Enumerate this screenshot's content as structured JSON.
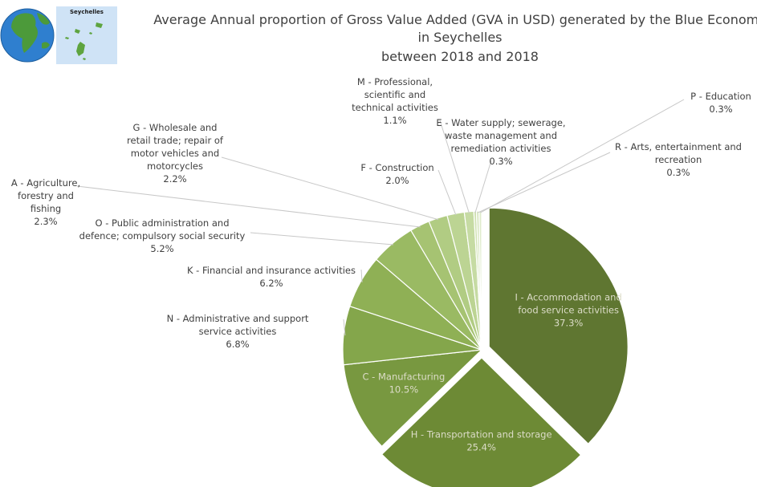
{
  "chart_data": {
    "type": "pie",
    "title": "Average Annual proportion of Gross Value Added (GVA in USD) generated by the Blue Economy in Seychelles between 2018 and 2018",
    "title_lines": [
      "Average Annual proportion of Gross Value Added (GVA in USD) generated by the Blue Economy",
      "in Seychelles",
      "between 2018 and 2018"
    ],
    "slices": [
      {
        "name": "I - Accommodation and food service activities",
        "label_lines": [
          "I - Accommodation and",
          "food service activities"
        ],
        "value": 37.3,
        "value_label": "37.3%",
        "color": "#5f7631",
        "exploded": true,
        "label_inside": true
      },
      {
        "name": "H - Transportation and storage",
        "label_lines": [
          "H - Transportation and storage"
        ],
        "value": 25.4,
        "value_label": "25.4%",
        "color": "#6d8a35",
        "exploded": true,
        "label_inside": true
      },
      {
        "name": "C - Manufacturing",
        "label_lines": [
          "C - Manufacturing"
        ],
        "value": 10.5,
        "value_label": "10.5%",
        "color": "#789840",
        "exploded": false,
        "label_inside": true
      },
      {
        "name": "N - Administrative and support service activities",
        "label_lines": [
          "N - Administrative and support",
          "service activities"
        ],
        "value": 6.8,
        "value_label": "6.8%",
        "color": "#84a64b",
        "exploded": false,
        "label_inside": false
      },
      {
        "name": "K - Financial and insurance activities",
        "label_lines": [
          "K - Financial and insurance activities"
        ],
        "value": 6.2,
        "value_label": "6.2%",
        "color": "#8fb055",
        "exploded": false,
        "label_inside": false
      },
      {
        "name": "O - Public administration and defence; compulsory social security",
        "label_lines": [
          "O - Public administration and",
          "defence; compulsory social security"
        ],
        "value": 5.2,
        "value_label": "5.2%",
        "color": "#9aba63",
        "exploded": false,
        "label_inside": false
      },
      {
        "name": "A - Agriculture, forestry and fishing",
        "label_lines": [
          "A - Agriculture,",
          "forestry and",
          "fishing"
        ],
        "value": 2.3,
        "value_label": "2.3%",
        "color": "#a6c372",
        "exploded": false,
        "label_inside": false
      },
      {
        "name": "G - Wholesale and retail trade; repair of motor vehicles and motorcycles",
        "label_lines": [
          "G - Wholesale and",
          "retail trade; repair of",
          "motor vehicles and",
          "motorcycles"
        ],
        "value": 2.2,
        "value_label": "2.2%",
        "color": "#b1cc83",
        "exploded": false,
        "label_inside": false
      },
      {
        "name": "F - Construction",
        "label_lines": [
          "F - Construction"
        ],
        "value": 2.0,
        "value_label": "2.0%",
        "color": "#bcd493",
        "exploded": false,
        "label_inside": false
      },
      {
        "name": "M - Professional, scientific and technical activities",
        "label_lines": [
          "M - Professional,",
          "scientific and",
          "technical activities"
        ],
        "value": 1.1,
        "value_label": "1.1%",
        "color": "#c6dba3",
        "exploded": false,
        "label_inside": false
      },
      {
        "name": "E - Water supply; sewerage, waste management and remediation activities",
        "label_lines": [
          "E - Water supply; sewerage,",
          "waste management and",
          "remediation activities"
        ],
        "value": 0.3,
        "value_label": "0.3%",
        "color": "#cfe1b1",
        "exploded": false,
        "label_inside": false
      },
      {
        "name": "R - Arts, entertainment and recreation",
        "label_lines": [
          "R - Arts, entertainment and",
          "recreation"
        ],
        "value": 0.3,
        "value_label": "0.3%",
        "color": "#d7e6bf",
        "exploded": false,
        "label_inside": false
      },
      {
        "name": "P - Education",
        "label_lines": [
          "P - Education"
        ],
        "value": 0.3,
        "value_label": "0.3%",
        "color": "#dfebcc",
        "exploded": false,
        "label_inside": false
      }
    ]
  },
  "map_inset": {
    "caption": "Seychelles"
  },
  "colors": {
    "ocean": "#2f7fcf",
    "land": "#4c9a3a",
    "inset_bg": "#cfe3f6",
    "islands": "#5ea43f"
  }
}
